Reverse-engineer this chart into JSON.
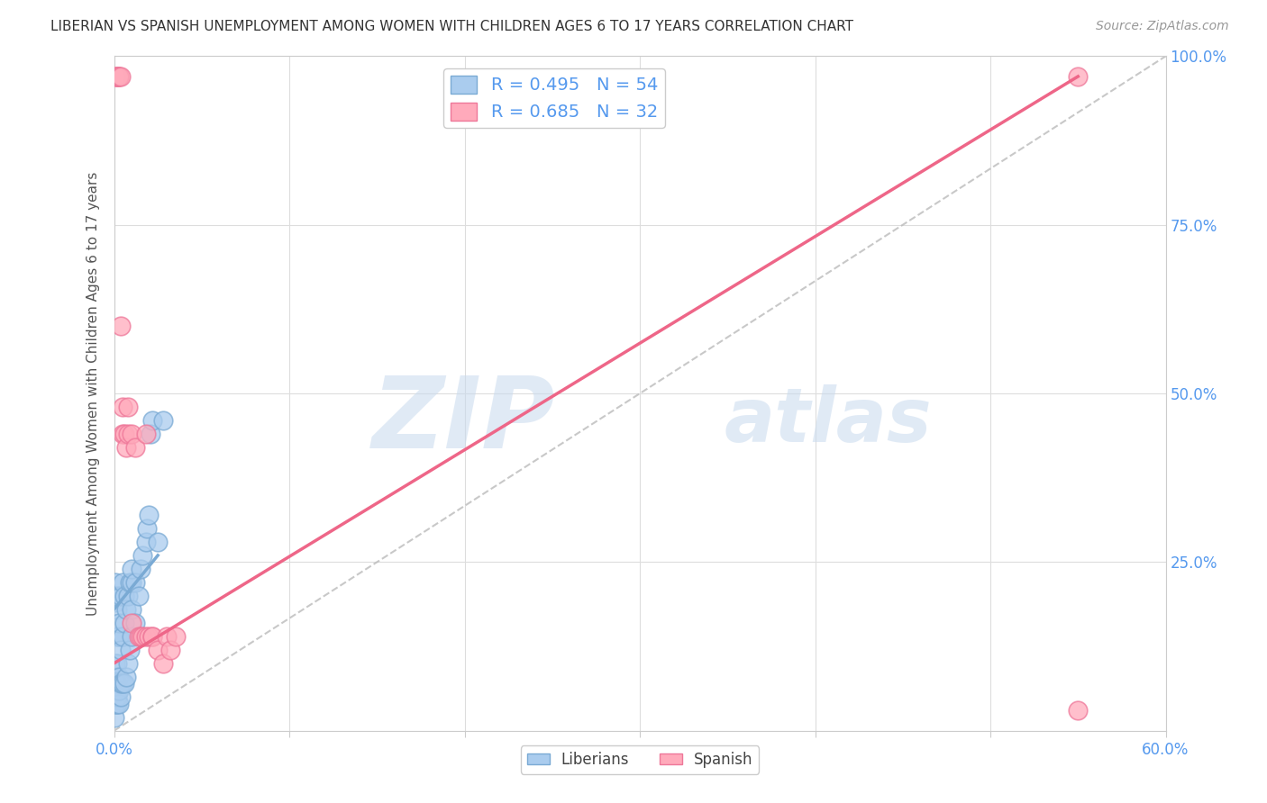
{
  "title": "LIBERIAN VS SPANISH UNEMPLOYMENT AMONG WOMEN WITH CHILDREN AGES 6 TO 17 YEARS CORRELATION CHART",
  "source": "Source: ZipAtlas.com",
  "ylabel": "Unemployment Among Women with Children Ages 6 to 17 years",
  "watermark_zip": "ZIP",
  "watermark_atlas": "atlas",
  "xlim": [
    0.0,
    0.6
  ],
  "ylim": [
    0.0,
    1.0
  ],
  "xticks": [
    0.0,
    0.1,
    0.2,
    0.3,
    0.4,
    0.5,
    0.6
  ],
  "xticklabels": [
    "0.0%",
    "",
    "",
    "",
    "",
    "",
    "60.0%"
  ],
  "yticks": [
    0.0,
    0.25,
    0.5,
    0.75,
    1.0
  ],
  "yticklabels_right": [
    "",
    "25.0%",
    "50.0%",
    "75.0%",
    "100.0%"
  ],
  "legend_R1": "R = 0.495",
  "legend_N1": "N = 54",
  "legend_R2": "R = 0.685",
  "legend_N2": "N = 32",
  "color_liberian_fill": "#AACCEE",
  "color_liberian_edge": "#7AAAD4",
  "color_spanish_fill": "#FFAABB",
  "color_spanish_edge": "#EE7799",
  "color_trendline1": "#7AAAD4",
  "color_trendline2": "#EE6688",
  "color_refline": "#BBBBBB",
  "color_axis_labels": "#5599EE",
  "liberian_x": [
    0.0,
    0.0,
    0.001,
    0.001,
    0.001,
    0.001,
    0.001,
    0.001,
    0.001,
    0.002,
    0.002,
    0.002,
    0.002,
    0.002,
    0.002,
    0.002,
    0.002,
    0.003,
    0.003,
    0.003,
    0.003,
    0.003,
    0.004,
    0.004,
    0.004,
    0.004,
    0.005,
    0.005,
    0.005,
    0.006,
    0.006,
    0.006,
    0.007,
    0.007,
    0.008,
    0.008,
    0.009,
    0.009,
    0.01,
    0.01,
    0.01,
    0.01,
    0.012,
    0.012,
    0.014,
    0.015,
    0.016,
    0.018,
    0.019,
    0.02,
    0.021,
    0.022,
    0.025,
    0.028
  ],
  "liberian_y": [
    0.04,
    0.02,
    0.04,
    0.06,
    0.07,
    0.08,
    0.1,
    0.19,
    0.22,
    0.04,
    0.05,
    0.06,
    0.07,
    0.1,
    0.14,
    0.18,
    0.2,
    0.04,
    0.06,
    0.08,
    0.14,
    0.16,
    0.05,
    0.07,
    0.12,
    0.2,
    0.07,
    0.14,
    0.22,
    0.07,
    0.16,
    0.2,
    0.08,
    0.18,
    0.1,
    0.2,
    0.12,
    0.22,
    0.14,
    0.18,
    0.22,
    0.24,
    0.16,
    0.22,
    0.2,
    0.24,
    0.26,
    0.28,
    0.3,
    0.32,
    0.44,
    0.46,
    0.28,
    0.46
  ],
  "spanish_x": [
    0.001,
    0.002,
    0.002,
    0.002,
    0.003,
    0.003,
    0.004,
    0.004,
    0.005,
    0.005,
    0.006,
    0.007,
    0.008,
    0.008,
    0.01,
    0.01,
    0.012,
    0.014,
    0.015,
    0.016,
    0.018,
    0.018,
    0.02,
    0.022,
    0.022,
    0.025,
    0.028,
    0.03,
    0.032,
    0.035,
    0.55,
    0.55
  ],
  "spanish_y": [
    0.97,
    0.97,
    0.97,
    0.97,
    0.97,
    0.97,
    0.97,
    0.6,
    0.44,
    0.48,
    0.44,
    0.42,
    0.44,
    0.48,
    0.16,
    0.44,
    0.42,
    0.14,
    0.14,
    0.14,
    0.14,
    0.44,
    0.14,
    0.14,
    0.14,
    0.12,
    0.1,
    0.14,
    0.12,
    0.14,
    0.97,
    0.03
  ],
  "trendline1_x": [
    0.0,
    0.025
  ],
  "trendline1_y": [
    0.18,
    0.26
  ],
  "trendline2_x": [
    0.0,
    0.55
  ],
  "trendline2_y": [
    0.1,
    0.97
  ],
  "refline_x": [
    0.0,
    0.6
  ],
  "refline_y": [
    0.0,
    1.0
  ],
  "background_color": "#FFFFFF",
  "grid_color": "#DDDDDD"
}
